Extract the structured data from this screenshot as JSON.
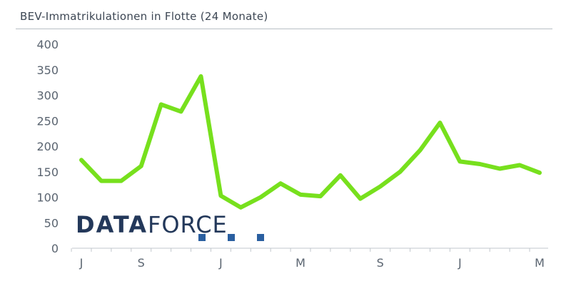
{
  "chart_data": {
    "type": "line",
    "title": "BEV-Immatrikulationen in Flotte (24 Monate)",
    "xlabel": "",
    "ylabel": "",
    "ylim": [
      0,
      400
    ],
    "yticks": [
      0,
      50,
      100,
      150,
      200,
      250,
      300,
      350,
      400
    ],
    "x_tick_labels": [
      {
        "index": 0,
        "label": "J"
      },
      {
        "index": 3,
        "label": "S"
      },
      {
        "index": 7,
        "label": "J"
      },
      {
        "index": 11,
        "label": "M"
      },
      {
        "index": 15,
        "label": "S"
      },
      {
        "index": 19,
        "label": "J"
      },
      {
        "index": 23,
        "label": "M"
      }
    ],
    "series": [
      {
        "values": [
          173,
          132,
          132,
          161,
          282,
          268,
          337,
          103,
          80,
          100,
          127,
          105,
          102,
          143,
          97,
          121,
          150,
          192,
          246,
          170,
          165,
          156,
          163,
          148
        ],
        "color": "#77e01d"
      }
    ],
    "grid": false,
    "legend": "none"
  },
  "logo": {
    "text_bold": "DATA",
    "text_light": "FORCE",
    "color": "#23385a",
    "square_color": "#2a5fa0"
  }
}
